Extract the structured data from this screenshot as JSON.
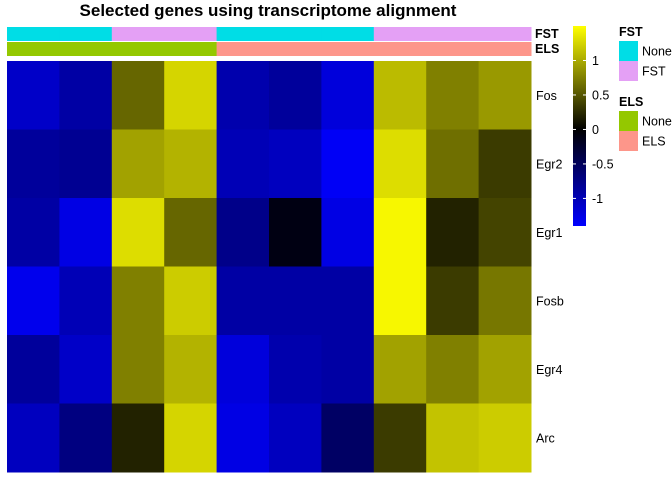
{
  "chart_data": {
    "type": "heatmap",
    "title": "Selected genes using transcriptome alignment",
    "rows": [
      "Fos",
      "Egr2",
      "Egr1",
      "Fosb",
      "Egr4",
      "Arc"
    ],
    "n_columns": 10,
    "values": [
      [
        -1.1,
        -0.9,
        0.6,
        1.25,
        -0.95,
        -0.85,
        -1.2,
        1.1,
        0.75,
        0.9
      ],
      [
        -0.85,
        -0.8,
        0.95,
        1.05,
        -1.0,
        -1.05,
        -1.35,
        1.3,
        0.65,
        0.35
      ],
      [
        -0.9,
        -1.25,
        1.3,
        0.6,
        -0.75,
        -0.1,
        -1.25,
        1.45,
        0.2,
        0.4
      ],
      [
        -1.3,
        -1.0,
        0.75,
        1.2,
        -0.9,
        -0.9,
        -0.9,
        1.45,
        0.35,
        0.7
      ],
      [
        -0.85,
        -1.1,
        0.75,
        1.05,
        -1.2,
        -0.95,
        -0.9,
        0.95,
        0.75,
        0.95
      ],
      [
        -1.05,
        -0.7,
        0.2,
        1.25,
        -1.25,
        -1.05,
        -0.55,
        0.35,
        1.15,
        1.2
      ]
    ],
    "annotations": [
      {
        "name": "FST",
        "values": [
          "None",
          "None",
          "FST",
          "FST",
          "None",
          "None",
          "None",
          "FST",
          "FST",
          "FST"
        ]
      },
      {
        "name": "ELS",
        "values": [
          "None",
          "None",
          "None",
          "None",
          "ELS",
          "ELS",
          "ELS",
          "ELS",
          "ELS",
          "ELS"
        ]
      }
    ],
    "color_scale": {
      "low": "#0000ff",
      "mid": "#000000",
      "high": "#ffff00",
      "min": -1.4,
      "max": 1.5,
      "ticks": [
        -1,
        -0.5,
        0,
        0.5,
        1
      ],
      "tick_labels": [
        "-1",
        "-0.5",
        "0",
        "0.5",
        "1"
      ]
    },
    "legends": [
      {
        "title": "FST",
        "items": [
          {
            "label": "None",
            "color": "#00dde6"
          },
          {
            "label": "FST",
            "color": "#e4a0f5"
          }
        ]
      },
      {
        "title": "ELS",
        "items": [
          {
            "label": "None",
            "color": "#94c800"
          },
          {
            "label": "ELS",
            "color": "#fd968a"
          }
        ]
      }
    ]
  }
}
